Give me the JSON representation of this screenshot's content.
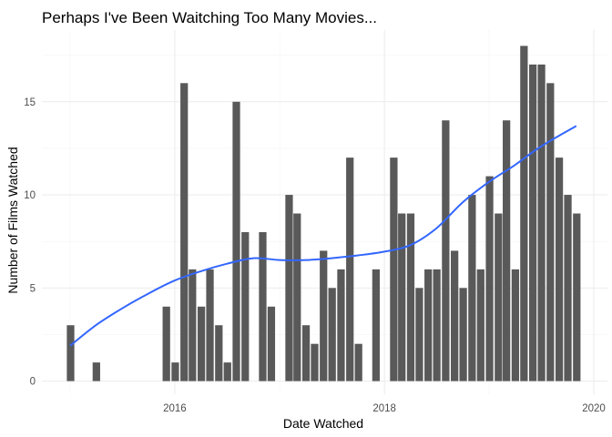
{
  "chart_data": {
    "type": "bar",
    "title": "Perhaps I've Been Waitching Too Many Movies...",
    "xlabel": "Date Watched",
    "ylabel": "Number of Films Watched",
    "x_ticks": [
      "2016",
      "2018",
      "2020"
    ],
    "y_ticks": [
      "0",
      "5",
      "10",
      "15"
    ],
    "ylim": [
      0,
      18
    ],
    "grid": true,
    "series": [
      {
        "values": [
          {
            "x": "2015-01",
            "y": 3
          },
          {
            "x": "2015-02",
            "y": 0
          },
          {
            "x": "2015-03",
            "y": 0
          },
          {
            "x": "2015-04",
            "y": 1
          },
          {
            "x": "2015-05",
            "y": 0
          },
          {
            "x": "2015-06",
            "y": 0
          },
          {
            "x": "2015-07",
            "y": 0
          },
          {
            "x": "2015-08",
            "y": 0
          },
          {
            "x": "2015-09",
            "y": 0
          },
          {
            "x": "2015-10",
            "y": 0
          },
          {
            "x": "2015-11",
            "y": 0
          },
          {
            "x": "2015-12",
            "y": 4
          },
          {
            "x": "2016-01",
            "y": 1
          },
          {
            "x": "2016-02",
            "y": 16
          },
          {
            "x": "2016-03",
            "y": 6
          },
          {
            "x": "2016-04",
            "y": 4
          },
          {
            "x": "2016-05",
            "y": 6
          },
          {
            "x": "2016-06",
            "y": 3
          },
          {
            "x": "2016-07",
            "y": 1
          },
          {
            "x": "2016-08",
            "y": 15
          },
          {
            "x": "2016-09",
            "y": 8
          },
          {
            "x": "2016-10",
            "y": 0
          },
          {
            "x": "2016-11",
            "y": 8
          },
          {
            "x": "2016-12",
            "y": 4
          },
          {
            "x": "2017-01",
            "y": 0
          },
          {
            "x": "2017-02",
            "y": 10
          },
          {
            "x": "2017-03",
            "y": 9
          },
          {
            "x": "2017-04",
            "y": 3
          },
          {
            "x": "2017-05",
            "y": 2
          },
          {
            "x": "2017-06",
            "y": 7
          },
          {
            "x": "2017-07",
            "y": 5
          },
          {
            "x": "2017-08",
            "y": 6
          },
          {
            "x": "2017-09",
            "y": 12
          },
          {
            "x": "2017-10",
            "y": 2
          },
          {
            "x": "2017-11",
            "y": 0
          },
          {
            "x": "2017-12",
            "y": 6
          },
          {
            "x": "2018-01",
            "y": 0
          },
          {
            "x": "2018-02",
            "y": 12
          },
          {
            "x": "2018-03",
            "y": 9
          },
          {
            "x": "2018-04",
            "y": 9
          },
          {
            "x": "2018-05",
            "y": 5
          },
          {
            "x": "2018-06",
            "y": 6
          },
          {
            "x": "2018-07",
            "y": 6
          },
          {
            "x": "2018-08",
            "y": 14
          },
          {
            "x": "2018-09",
            "y": 7
          },
          {
            "x": "2018-10",
            "y": 5
          },
          {
            "x": "2018-11",
            "y": 10
          },
          {
            "x": "2018-12",
            "y": 6
          },
          {
            "x": "2019-01",
            "y": 11
          },
          {
            "x": "2019-02",
            "y": 9
          },
          {
            "x": "2019-03",
            "y": 14
          },
          {
            "x": "2019-04",
            "y": 6
          },
          {
            "x": "2019-05",
            "y": 18
          },
          {
            "x": "2019-06",
            "y": 17
          },
          {
            "x": "2019-07",
            "y": 17
          },
          {
            "x": "2019-08",
            "y": 16
          },
          {
            "x": "2019-09",
            "y": 12
          },
          {
            "x": "2019-10",
            "y": 10
          },
          {
            "x": "2019-11",
            "y": 9
          }
        ]
      }
    ],
    "trend_line": {
      "type": "smooth",
      "points": [
        {
          "x": "2015-01",
          "y": 1.9
        },
        {
          "x": "2015-04",
          "y": 3.0
        },
        {
          "x": "2015-07",
          "y": 3.9
        },
        {
          "x": "2015-10",
          "y": 4.7
        },
        {
          "x": "2016-01",
          "y": 5.4
        },
        {
          "x": "2016-04",
          "y": 5.9
        },
        {
          "x": "2016-07",
          "y": 6.3
        },
        {
          "x": "2016-10",
          "y": 6.6
        },
        {
          "x": "2017-01",
          "y": 6.5
        },
        {
          "x": "2017-04",
          "y": 6.5
        },
        {
          "x": "2017-07",
          "y": 6.6
        },
        {
          "x": "2017-10",
          "y": 6.75
        },
        {
          "x": "2018-01",
          "y": 6.95
        },
        {
          "x": "2018-04",
          "y": 7.3
        },
        {
          "x": "2018-07",
          "y": 8.2
        },
        {
          "x": "2018-10",
          "y": 9.6
        },
        {
          "x": "2019-01",
          "y": 10.7
        },
        {
          "x": "2019-04",
          "y": 11.6
        },
        {
          "x": "2019-07",
          "y": 12.6
        },
        {
          "x": "2019-11",
          "y": 13.7
        }
      ],
      "color": "#3366ff"
    },
    "bar_color": "#595959"
  }
}
